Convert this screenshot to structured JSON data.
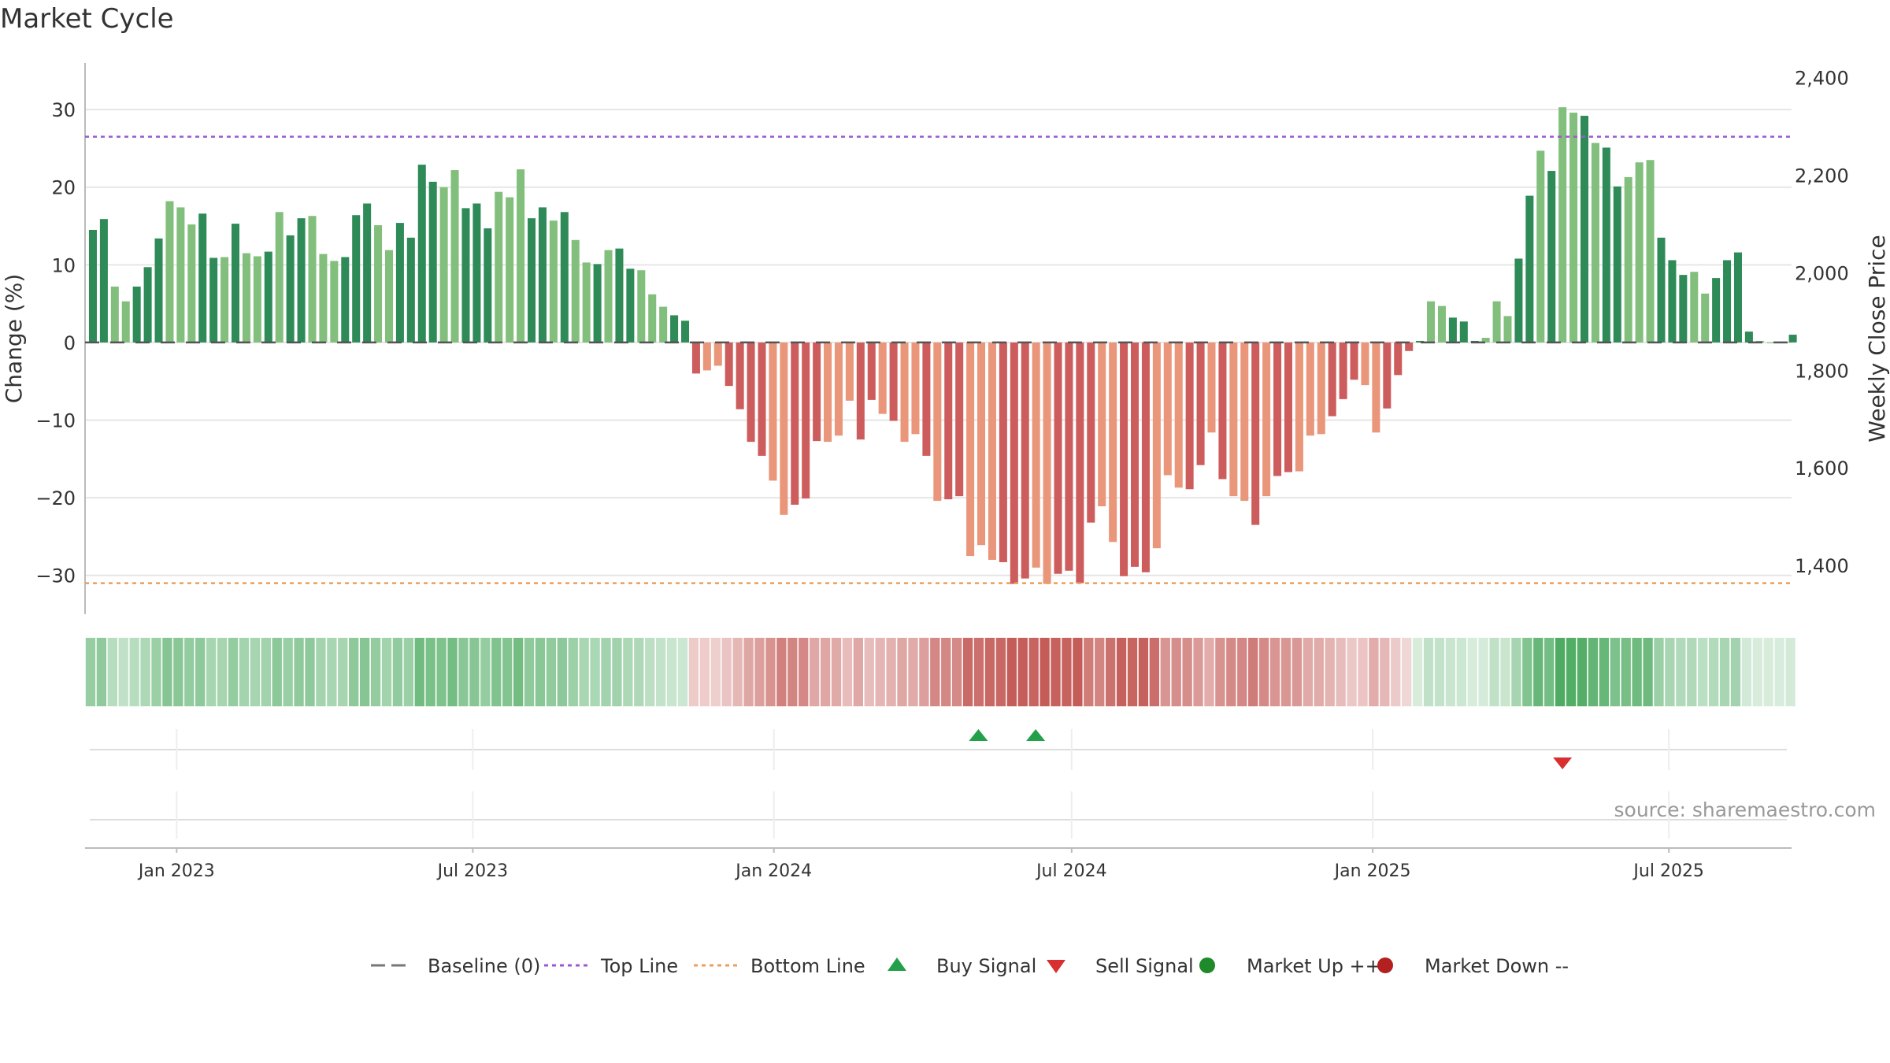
{
  "chart_data": {
    "type": "bar",
    "title": "Market Cycle",
    "ylabel": "Change (%)",
    "y2label": "Weekly Close Price",
    "ylim": [
      -35,
      36
    ],
    "y2lim": [
      1300,
      2430
    ],
    "yticks": [
      30,
      20,
      10,
      0,
      -10,
      -20,
      -30
    ],
    "ytick_labels": [
      "30",
      "20",
      "10",
      "0",
      "−10",
      "−20",
      "−30"
    ],
    "y2ticks": [
      2400,
      2200,
      2000,
      1800,
      1600,
      1400
    ],
    "y2tick_labels": [
      "2,400",
      "2,200",
      "2,000",
      "1,800",
      "1,600",
      "1,400"
    ],
    "xlim": [
      "2022-11-06",
      "2025-09-14"
    ],
    "xticks": [
      "2023-01-01",
      "2023-07-01",
      "2024-01-01",
      "2024-07-01",
      "2025-01-01",
      "2025-07-01"
    ],
    "xtick_labels": [
      "Jan 2023",
      "Jul 2023",
      "Jan 2024",
      "Jul 2024",
      "Jan 2025",
      "Jul 2025"
    ],
    "top_line": 26.5,
    "bottom_line": -31,
    "first_week": "2022-11-06",
    "values": [
      14.5,
      15.9,
      7.2,
      5.3,
      7.2,
      9.7,
      13.4,
      18.2,
      17.4,
      15.2,
      16.6,
      10.9,
      11.0,
      15.3,
      11.5,
      11.1,
      11.7,
      16.8,
      13.8,
      16.0,
      16.3,
      11.4,
      10.5,
      11.0,
      16.4,
      17.9,
      15.1,
      11.9,
      15.4,
      13.5,
      22.9,
      20.7,
      20.0,
      22.2,
      17.3,
      17.9,
      14.7,
      19.4,
      18.7,
      22.3,
      16.0,
      17.4,
      15.7,
      16.8,
      13.2,
      10.3,
      10.1,
      11.9,
      12.1,
      9.5,
      9.3,
      6.2,
      4.6,
      3.5,
      2.8,
      -4.0,
      -3.6,
      -3.0,
      -5.6,
      -8.6,
      -12.8,
      -14.6,
      -17.8,
      -22.2,
      -20.9,
      -20.1,
      -12.7,
      -12.8,
      -12.0,
      -7.5,
      -12.5,
      -7.4,
      -9.2,
      -10.1,
      -12.8,
      -11.8,
      -14.6,
      -20.4,
      -20.2,
      -19.8,
      -27.5,
      -26.1,
      -28.0,
      -28.3,
      -31.1,
      -30.4,
      -29.0,
      -31.1,
      -29.8,
      -29.4,
      -31.0,
      -23.2,
      -21.1,
      -25.7,
      -30.1,
      -28.9,
      -29.6,
      -26.5,
      -17.1,
      -18.7,
      -18.9,
      -15.8,
      -11.6,
      -17.6,
      -19.8,
      -20.4,
      -23.5,
      -19.8,
      -17.2,
      -16.7,
      -16.6,
      -12.0,
      -11.8,
      -9.5,
      -7.3,
      -4.8,
      -5.5,
      -11.6,
      -8.5,
      -4.2,
      -1.1,
      0.2,
      5.3,
      4.7,
      3.2,
      2.7,
      0.2,
      0.6,
      5.3,
      3.4,
      10.8,
      18.9,
      24.7,
      22.1,
      30.3,
      29.6,
      29.2,
      25.7,
      25.1,
      20.1,
      21.3,
      23.2,
      23.5,
      13.5,
      10.6,
      8.7,
      9.1,
      6.3,
      8.3,
      10.6,
      11.6,
      1.4,
      0.2,
      0.0,
      0.1,
      1.0
    ],
    "buy_signals": [
      "2024-05-05",
      "2024-06-09"
    ],
    "sell_signals": [
      "2025-04-27"
    ],
    "market_up_signals": [],
    "market_down_signals": [],
    "legend": {
      "position": "bottom",
      "items": [
        {
          "label": "Baseline (0)",
          "color": "#777777",
          "marker": "dash"
        },
        {
          "label": "Top Line",
          "color": "#9b59d0",
          "marker": "dot-line"
        },
        {
          "label": "Bottom Line",
          "color": "#e8a060",
          "marker": "dot-line"
        },
        {
          "label": "Buy Signal",
          "color": "#22a04a",
          "marker": "triangle-up"
        },
        {
          "label": "Sell Signal",
          "color": "#d83030",
          "marker": "triangle-down"
        },
        {
          "label": "Market Up ++",
          "color": "#1e8a2a",
          "marker": "circle"
        },
        {
          "label": "Market Down --",
          "color": "#b32020",
          "marker": "circle"
        }
      ]
    },
    "colors": {
      "pos_dark": "#2e8b57",
      "pos_light": "#82bf7c",
      "neg_dark": "#cd5c5c",
      "neg_light": "#e9967a",
      "grid": "#e6e6e6",
      "axis": "#bbbbbb",
      "text": "#333333"
    },
    "grid": true
  },
  "source": "source: sharemaestro.com"
}
